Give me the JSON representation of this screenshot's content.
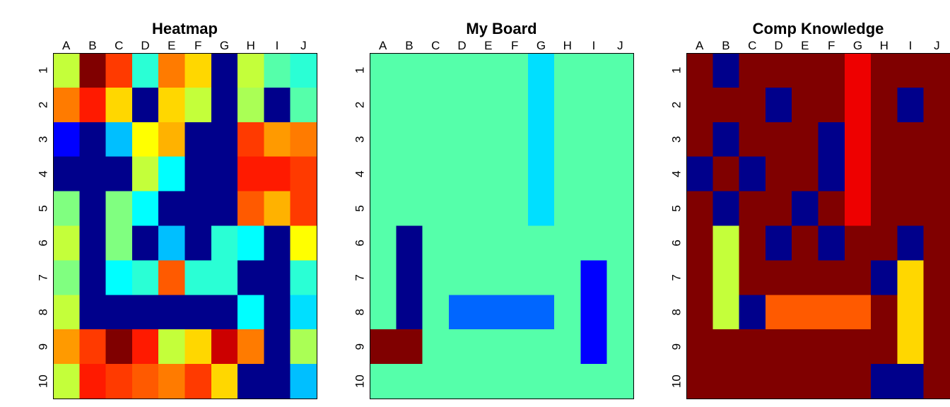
{
  "palette": {
    "0": "#00008B",
    "1": "#0000FF",
    "2": "#0066FF",
    "3": "#00BFFF",
    "4": "#00DFFF",
    "5": "#00FFFF",
    "6": "#2AFFD5",
    "7": "#55FFAA",
    "8": "#80FF80",
    "9": "#AAFF55",
    "10": "#C4FF3A",
    "11": "#FFFF00",
    "12": "#FFD700",
    "13": "#FFB200",
    "14": "#FF9A00",
    "15": "#FF7B00",
    "16": "#FF5A00",
    "17": "#FF3A00",
    "18": "#FF1A00",
    "19": "#EE0000",
    "20": "#CC0000",
    "21": "#800000"
  },
  "chart_data": [
    {
      "type": "heatmap",
      "title": "Heatmap",
      "x_labels": [
        "A",
        "B",
        "C",
        "D",
        "E",
        "F",
        "G",
        "H",
        "I",
        "J"
      ],
      "y_labels": [
        "1",
        "2",
        "3",
        "4",
        "5",
        "6",
        "7",
        "8",
        "9",
        "10"
      ],
      "cells": [
        [
          10,
          21,
          17,
          6,
          15,
          12,
          0,
          10,
          7,
          6
        ],
        [
          15,
          18,
          12,
          0,
          12,
          10,
          0,
          9,
          0,
          7
        ],
        [
          1,
          0,
          3,
          11,
          13,
          0,
          0,
          17,
          14,
          15
        ],
        [
          0,
          0,
          0,
          10,
          5,
          0,
          0,
          18,
          18,
          17
        ],
        [
          8,
          0,
          8,
          5,
          0,
          0,
          0,
          16,
          13,
          17
        ],
        [
          10,
          0,
          8,
          0,
          3,
          0,
          6,
          5,
          0,
          11
        ],
        [
          8,
          0,
          5,
          6,
          16,
          6,
          6,
          0,
          0,
          6
        ],
        [
          10,
          0,
          0,
          0,
          0,
          0,
          0,
          5,
          0,
          4
        ],
        [
          14,
          17,
          21,
          18,
          10,
          12,
          20,
          15,
          0,
          9
        ],
        [
          10,
          18,
          17,
          16,
          15,
          17,
          12,
          0,
          0,
          3
        ]
      ]
    },
    {
      "type": "heatmap",
      "title": "My Board",
      "x_labels": [
        "A",
        "B",
        "C",
        "D",
        "E",
        "F",
        "G",
        "H",
        "I",
        "J"
      ],
      "y_labels": [
        "1",
        "2",
        "3",
        "4",
        "5",
        "6",
        "7",
        "8",
        "9",
        "10"
      ],
      "cells": [
        [
          7,
          7,
          7,
          7,
          7,
          7,
          4,
          7,
          7,
          7
        ],
        [
          7,
          7,
          7,
          7,
          7,
          7,
          4,
          7,
          7,
          7
        ],
        [
          7,
          7,
          7,
          7,
          7,
          7,
          4,
          7,
          7,
          7
        ],
        [
          7,
          7,
          7,
          7,
          7,
          7,
          4,
          7,
          7,
          7
        ],
        [
          7,
          7,
          7,
          7,
          7,
          7,
          4,
          7,
          7,
          7
        ],
        [
          7,
          0,
          7,
          7,
          7,
          7,
          7,
          7,
          7,
          7
        ],
        [
          7,
          0,
          7,
          7,
          7,
          7,
          7,
          7,
          1,
          7
        ],
        [
          7,
          0,
          7,
          2,
          2,
          2,
          2,
          7,
          1,
          7
        ],
        [
          21,
          21,
          7,
          7,
          7,
          7,
          7,
          7,
          1,
          7
        ],
        [
          7,
          7,
          7,
          7,
          7,
          7,
          7,
          7,
          7,
          7
        ]
      ]
    },
    {
      "type": "heatmap",
      "title": "Comp Knowledge",
      "x_labels": [
        "A",
        "B",
        "C",
        "D",
        "E",
        "F",
        "G",
        "H",
        "I",
        "J"
      ],
      "y_labels": [
        "1",
        "2",
        "3",
        "4",
        "5",
        "6",
        "7",
        "8",
        "9",
        "10"
      ],
      "cells": [
        [
          21,
          0,
          21,
          21,
          21,
          21,
          19,
          21,
          21,
          21
        ],
        [
          21,
          21,
          21,
          0,
          21,
          21,
          19,
          21,
          0,
          21
        ],
        [
          21,
          0,
          21,
          21,
          21,
          0,
          19,
          21,
          21,
          21
        ],
        [
          0,
          21,
          0,
          21,
          21,
          0,
          19,
          21,
          21,
          21
        ],
        [
          21,
          0,
          21,
          21,
          0,
          21,
          19,
          21,
          21,
          21
        ],
        [
          21,
          10,
          21,
          0,
          21,
          0,
          21,
          21,
          0,
          21
        ],
        [
          21,
          10,
          21,
          21,
          21,
          21,
          21,
          0,
          12,
          21
        ],
        [
          21,
          10,
          0,
          16,
          16,
          16,
          16,
          21,
          12,
          21
        ],
        [
          21,
          21,
          21,
          21,
          21,
          21,
          21,
          21,
          12,
          21
        ],
        [
          21,
          21,
          21,
          21,
          21,
          21,
          21,
          0,
          0,
          21
        ]
      ]
    }
  ]
}
